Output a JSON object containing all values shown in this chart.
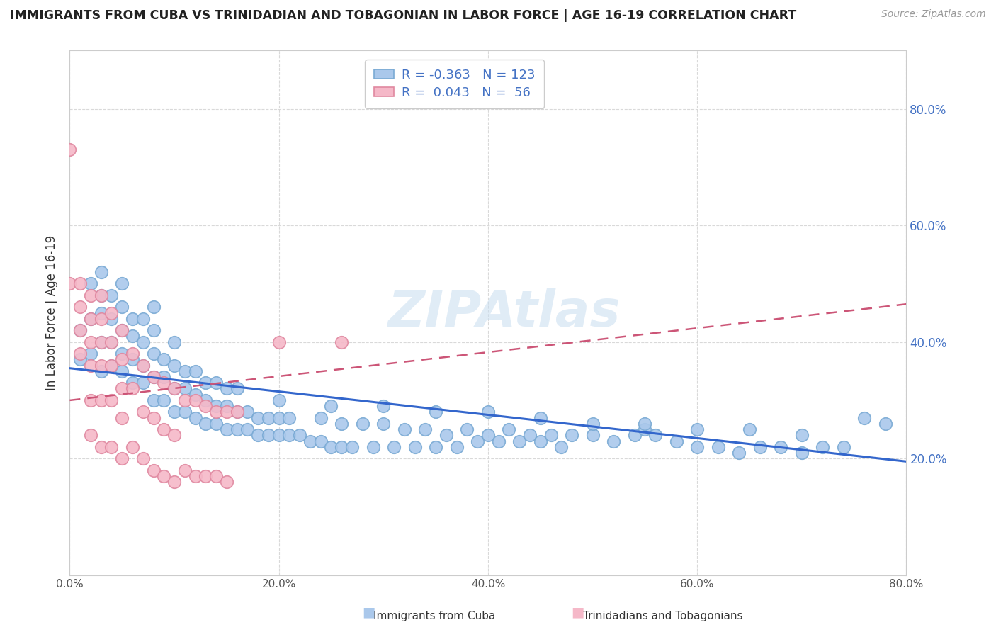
{
  "title": "IMMIGRANTS FROM CUBA VS TRINIDADIAN AND TOBAGONIAN IN LABOR FORCE | AGE 16-19 CORRELATION CHART",
  "source": "Source: ZipAtlas.com",
  "ylabel": "In Labor Force | Age 16-19",
  "xlim": [
    0.0,
    0.8
  ],
  "ylim": [
    0.0,
    0.9
  ],
  "ytick_positions": [
    0.2,
    0.4,
    0.6,
    0.8
  ],
  "ytick_labels": [
    "20.0%",
    "40.0%",
    "60.0%",
    "80.0%"
  ],
  "xtick_positions": [
    0.0,
    0.2,
    0.4,
    0.6,
    0.8
  ],
  "xtick_labels": [
    "0.0%",
    "20.0%",
    "40.0%",
    "60.0%",
    "80.0%"
  ],
  "grid_color": "#d0d0d0",
  "watermark": "ZIPAtlas",
  "cuba_color": "#aac8eb",
  "cuba_edge_color": "#7aaad4",
  "tnt_color": "#f5b8c8",
  "tnt_edge_color": "#e088a0",
  "cuba_R": -0.363,
  "cuba_N": 123,
  "tnt_R": 0.043,
  "tnt_N": 56,
  "cuba_line_color": "#3366cc",
  "tnt_line_color": "#cc5577",
  "legend_label_cuba": "Immigrants from Cuba",
  "legend_label_tnt": "Trinidadians and Tobagonians",
  "cuba_scatter_x": [
    0.01,
    0.01,
    0.02,
    0.02,
    0.02,
    0.03,
    0.03,
    0.03,
    0.03,
    0.03,
    0.04,
    0.04,
    0.04,
    0.04,
    0.05,
    0.05,
    0.05,
    0.05,
    0.05,
    0.06,
    0.06,
    0.06,
    0.06,
    0.07,
    0.07,
    0.07,
    0.07,
    0.08,
    0.08,
    0.08,
    0.08,
    0.08,
    0.09,
    0.09,
    0.09,
    0.1,
    0.1,
    0.1,
    0.1,
    0.11,
    0.11,
    0.11,
    0.12,
    0.12,
    0.12,
    0.13,
    0.13,
    0.13,
    0.14,
    0.14,
    0.14,
    0.15,
    0.15,
    0.15,
    0.16,
    0.16,
    0.16,
    0.17,
    0.17,
    0.18,
    0.18,
    0.19,
    0.19,
    0.2,
    0.2,
    0.21,
    0.21,
    0.22,
    0.23,
    0.24,
    0.24,
    0.25,
    0.26,
    0.26,
    0.27,
    0.28,
    0.29,
    0.3,
    0.31,
    0.32,
    0.33,
    0.34,
    0.35,
    0.36,
    0.37,
    0.38,
    0.39,
    0.4,
    0.41,
    0.42,
    0.43,
    0.44,
    0.45,
    0.46,
    0.47,
    0.48,
    0.5,
    0.52,
    0.54,
    0.55,
    0.56,
    0.58,
    0.6,
    0.62,
    0.64,
    0.66,
    0.68,
    0.7,
    0.72,
    0.74,
    0.76,
    0.78,
    0.2,
    0.25,
    0.3,
    0.35,
    0.4,
    0.45,
    0.5,
    0.55,
    0.6,
    0.65,
    0.7
  ],
  "cuba_scatter_y": [
    0.37,
    0.42,
    0.38,
    0.44,
    0.5,
    0.35,
    0.4,
    0.45,
    0.48,
    0.52,
    0.36,
    0.4,
    0.44,
    0.48,
    0.35,
    0.38,
    0.42,
    0.46,
    0.5,
    0.33,
    0.37,
    0.41,
    0.44,
    0.33,
    0.36,
    0.4,
    0.44,
    0.3,
    0.34,
    0.38,
    0.42,
    0.46,
    0.3,
    0.34,
    0.37,
    0.28,
    0.32,
    0.36,
    0.4,
    0.28,
    0.32,
    0.35,
    0.27,
    0.31,
    0.35,
    0.26,
    0.3,
    0.33,
    0.26,
    0.29,
    0.33,
    0.25,
    0.29,
    0.32,
    0.25,
    0.28,
    0.32,
    0.25,
    0.28,
    0.24,
    0.27,
    0.24,
    0.27,
    0.24,
    0.27,
    0.24,
    0.27,
    0.24,
    0.23,
    0.23,
    0.27,
    0.22,
    0.22,
    0.26,
    0.22,
    0.26,
    0.22,
    0.26,
    0.22,
    0.25,
    0.22,
    0.25,
    0.22,
    0.24,
    0.22,
    0.25,
    0.23,
    0.24,
    0.23,
    0.25,
    0.23,
    0.24,
    0.23,
    0.24,
    0.22,
    0.24,
    0.24,
    0.23,
    0.24,
    0.25,
    0.24,
    0.23,
    0.22,
    0.22,
    0.21,
    0.22,
    0.22,
    0.21,
    0.22,
    0.22,
    0.27,
    0.26,
    0.3,
    0.29,
    0.29,
    0.28,
    0.28,
    0.27,
    0.26,
    0.26,
    0.25,
    0.25,
    0.24
  ],
  "tnt_scatter_x": [
    0.0,
    0.0,
    0.01,
    0.01,
    0.01,
    0.01,
    0.02,
    0.02,
    0.02,
    0.02,
    0.02,
    0.02,
    0.03,
    0.03,
    0.03,
    0.03,
    0.03,
    0.03,
    0.04,
    0.04,
    0.04,
    0.04,
    0.04,
    0.05,
    0.05,
    0.05,
    0.05,
    0.05,
    0.06,
    0.06,
    0.06,
    0.07,
    0.07,
    0.07,
    0.08,
    0.08,
    0.08,
    0.09,
    0.09,
    0.09,
    0.1,
    0.1,
    0.1,
    0.11,
    0.11,
    0.12,
    0.12,
    0.13,
    0.13,
    0.14,
    0.14,
    0.15,
    0.15,
    0.16,
    0.2,
    0.26
  ],
  "tnt_scatter_y": [
    0.73,
    0.5,
    0.5,
    0.46,
    0.42,
    0.38,
    0.48,
    0.44,
    0.4,
    0.36,
    0.3,
    0.24,
    0.48,
    0.44,
    0.4,
    0.36,
    0.3,
    0.22,
    0.45,
    0.4,
    0.36,
    0.3,
    0.22,
    0.42,
    0.37,
    0.32,
    0.27,
    0.2,
    0.38,
    0.32,
    0.22,
    0.36,
    0.28,
    0.2,
    0.34,
    0.27,
    0.18,
    0.33,
    0.25,
    0.17,
    0.32,
    0.24,
    0.16,
    0.3,
    0.18,
    0.3,
    0.17,
    0.29,
    0.17,
    0.28,
    0.17,
    0.28,
    0.16,
    0.28,
    0.4,
    0.4
  ]
}
